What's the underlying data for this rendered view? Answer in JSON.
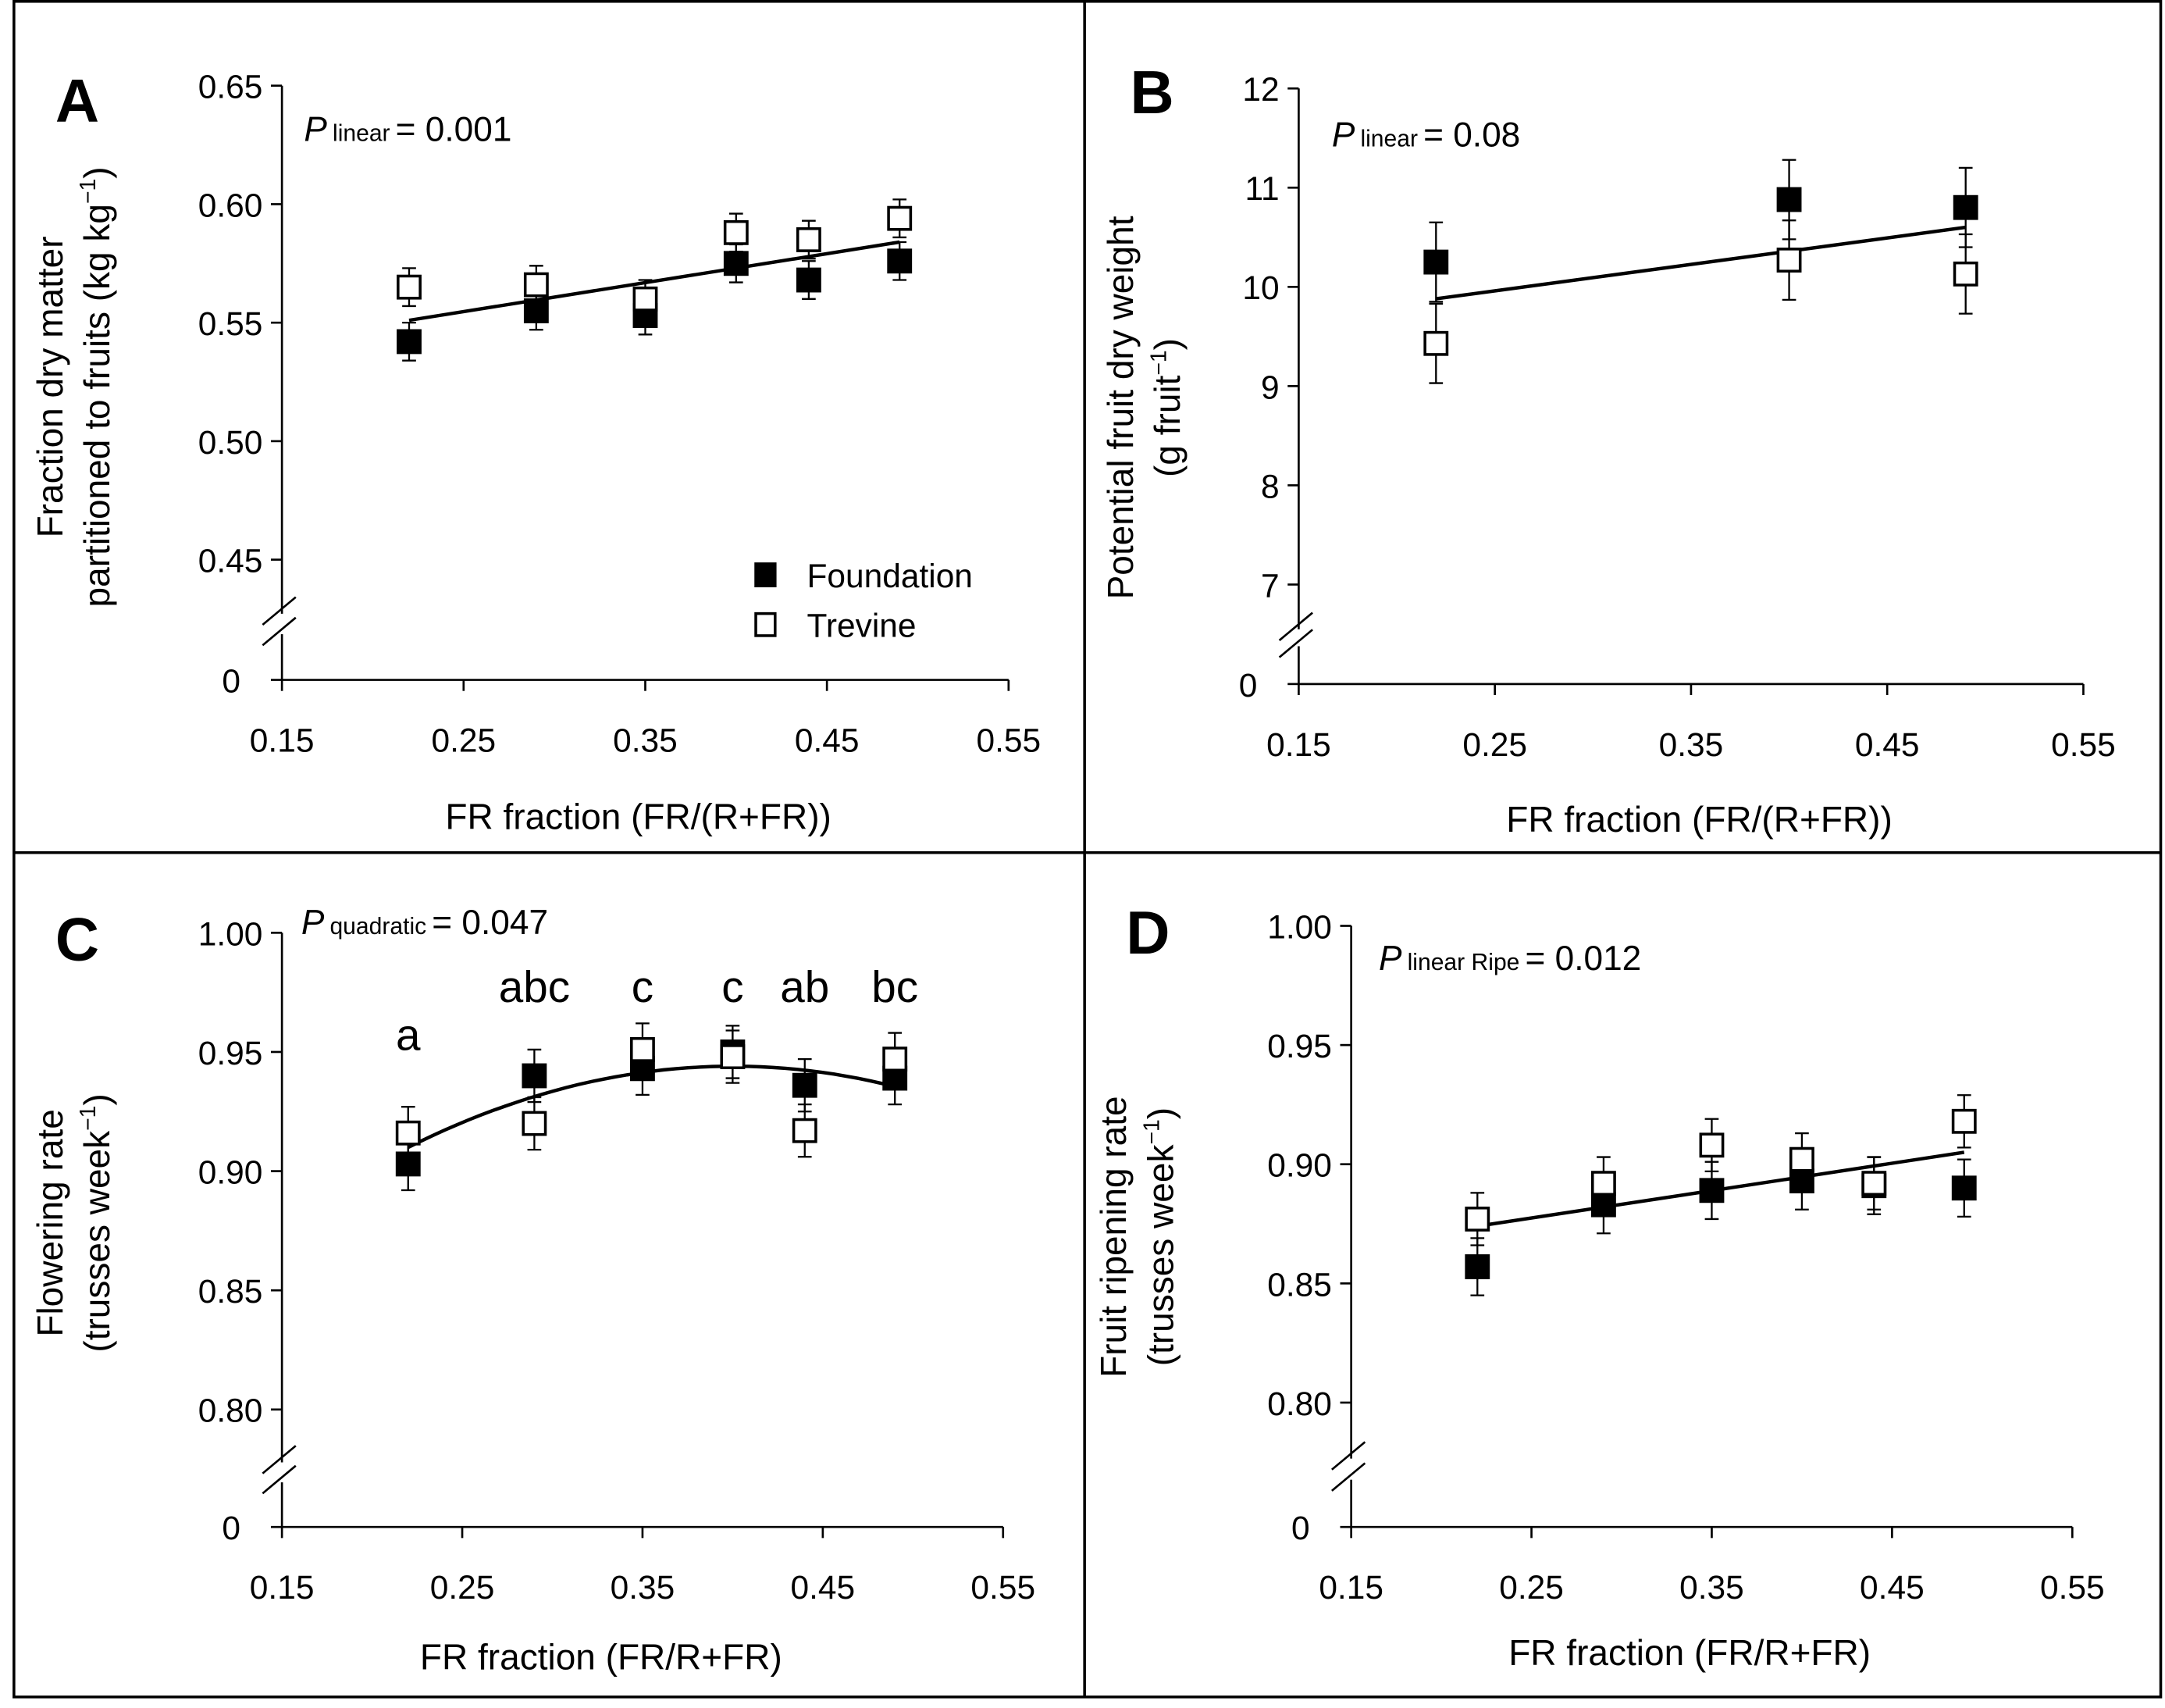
{
  "chart_data": [
    {
      "panel": "A",
      "type": "scatter",
      "xlabel": "FR fraction (FR/(R+FR))",
      "ylabel": [
        "Fraction dry matter",
        "partitioned to fruits (kg kg",
        "−1",
        ")"
      ],
      "xticks": [
        "0.15",
        "0.25",
        "0.35",
        "0.45",
        "0.55"
      ],
      "xlim": [
        0.15,
        0.55
      ],
      "yticks": [
        "0.45",
        "0.50",
        "0.55",
        "0.60",
        "0.65"
      ],
      "ylim": [
        0.45,
        0.65
      ],
      "ybreak_zero_label": "0",
      "stat": {
        "P": "P",
        "sub": "linear",
        "value": "= 0.001"
      },
      "x": [
        0.22,
        0.29,
        0.35,
        0.4,
        0.44,
        0.49
      ],
      "series": [
        {
          "name": "Foundation",
          "marker": "filled",
          "values": [
            0.542,
            0.555,
            0.553,
            0.575,
            0.568,
            0.576
          ],
          "error": [
            0.008,
            0.008,
            0.008,
            0.008,
            0.008,
            0.008
          ]
        },
        {
          "name": "Trevine",
          "marker": "open",
          "values": [
            0.565,
            0.566,
            0.56,
            0.588,
            0.585,
            0.594
          ],
          "error": [
            0.008,
            0.008,
            0.008,
            0.008,
            0.008,
            0.008
          ]
        }
      ],
      "fit": {
        "type": "linear",
        "x": [
          0.22,
          0.49
        ],
        "y": [
          0.551,
          0.584
        ]
      },
      "legend": {
        "position": "bottom-right",
        "entries": [
          "Foundation",
          "Trevine"
        ]
      }
    },
    {
      "panel": "B",
      "type": "scatter",
      "xlabel": "FR fraction (FR/(R+FR))",
      "ylabel": [
        "Potential fruit dry weight",
        "(g fruit",
        "−1",
        ")"
      ],
      "xticks": [
        "0.15",
        "0.25",
        "0.35",
        "0.45",
        "0.55"
      ],
      "xlim": [
        0.15,
        0.55
      ],
      "yticks": [
        "7",
        "8",
        "9",
        "10",
        "11",
        "12"
      ],
      "ylim": [
        7,
        12
      ],
      "ybreak_zero_label": "0",
      "stat": {
        "P": "P",
        "sub": "linear",
        "value": "= 0.08"
      },
      "x": [
        0.22,
        0.4,
        0.49
      ],
      "series": [
        {
          "name": "Foundation",
          "marker": "filled",
          "values": [
            10.25,
            10.88,
            10.8
          ],
          "error": [
            0.4,
            0.4,
            0.4
          ]
        },
        {
          "name": "Trevine",
          "marker": "open",
          "values": [
            9.43,
            10.27,
            10.13
          ],
          "error": [
            0.4,
            0.4,
            0.4
          ]
        }
      ],
      "fit": {
        "type": "linear",
        "x": [
          0.22,
          0.49
        ],
        "y": [
          9.88,
          10.6
        ]
      }
    },
    {
      "panel": "C",
      "type": "scatter",
      "xlabel": "FR fraction (FR/R+FR)",
      "ylabel": [
        "Flowering rate",
        "(trusses week",
        "−1",
        ")"
      ],
      "xticks": [
        "0.15",
        "0.25",
        "0.35",
        "0.45",
        "0.55"
      ],
      "xlim": [
        0.15,
        0.55
      ],
      "yticks": [
        "0.80",
        "0.85",
        "0.90",
        "0.95",
        "1.00"
      ],
      "ylim": [
        0.8,
        1.0
      ],
      "ybreak_zero_label": "0",
      "stat": {
        "P": "P",
        "sub": "quadratic",
        "value": "= 0.047"
      },
      "x": [
        0.22,
        0.29,
        0.35,
        0.4,
        0.44,
        0.49
      ],
      "series": [
        {
          "name": "Foundation",
          "marker": "filled",
          "values": [
            0.903,
            0.94,
            0.943,
            0.95,
            0.936,
            0.939
          ],
          "error": [
            0.011,
            0.011,
            0.011,
            0.011,
            0.011,
            0.011
          ]
        },
        {
          "name": "Trevine",
          "marker": "open",
          "values": [
            0.916,
            0.92,
            0.951,
            0.948,
            0.917,
            0.947
          ],
          "error": [
            0.011,
            0.011,
            0.011,
            0.011,
            0.011,
            0.011
          ]
        }
      ],
      "significance_letters": [
        "a",
        "abc",
        "c",
        "c",
        "ab",
        "bc"
      ],
      "fit": {
        "type": "quadratic",
        "vertex_x": 0.4,
        "vertex_y": 0.944,
        "curvature": 1.05,
        "x": [
          0.22,
          0.49
        ]
      }
    },
    {
      "panel": "D",
      "type": "scatter",
      "xlabel": "FR fraction (FR/R+FR)",
      "ylabel": [
        "Fruit ripening rate",
        "(trusses week",
        "−1",
        ")"
      ],
      "xticks": [
        "0.15",
        "0.25",
        "0.35",
        "0.45",
        "0.55"
      ],
      "xlim": [
        0.15,
        0.55
      ],
      "yticks": [
        "0.80",
        "0.85",
        "0.90",
        "0.95",
        "1.00"
      ],
      "ylim": [
        0.8,
        1.0
      ],
      "ybreak_zero_label": "0",
      "stat": {
        "P": "P",
        "sub": "linear Ripe",
        "value": "= 0.012"
      },
      "x": [
        0.22,
        0.29,
        0.35,
        0.4,
        0.44,
        0.49
      ],
      "series": [
        {
          "name": "Foundation",
          "marker": "filled",
          "values": [
            0.857,
            0.883,
            0.889,
            0.893,
            0.891,
            0.89
          ],
          "error": [
            0.012,
            0.012,
            0.012,
            0.012,
            0.012,
            0.012
          ]
        },
        {
          "name": "Trevine",
          "marker": "open",
          "values": [
            0.877,
            0.892,
            0.908,
            0.902,
            0.892,
            0.918
          ],
          "error": [
            0.011,
            0.011,
            0.011,
            0.011,
            0.011,
            0.011
          ]
        }
      ],
      "fit": {
        "type": "linear",
        "x": [
          0.22,
          0.49
        ],
        "y": [
          0.874,
          0.905
        ]
      }
    }
  ]
}
